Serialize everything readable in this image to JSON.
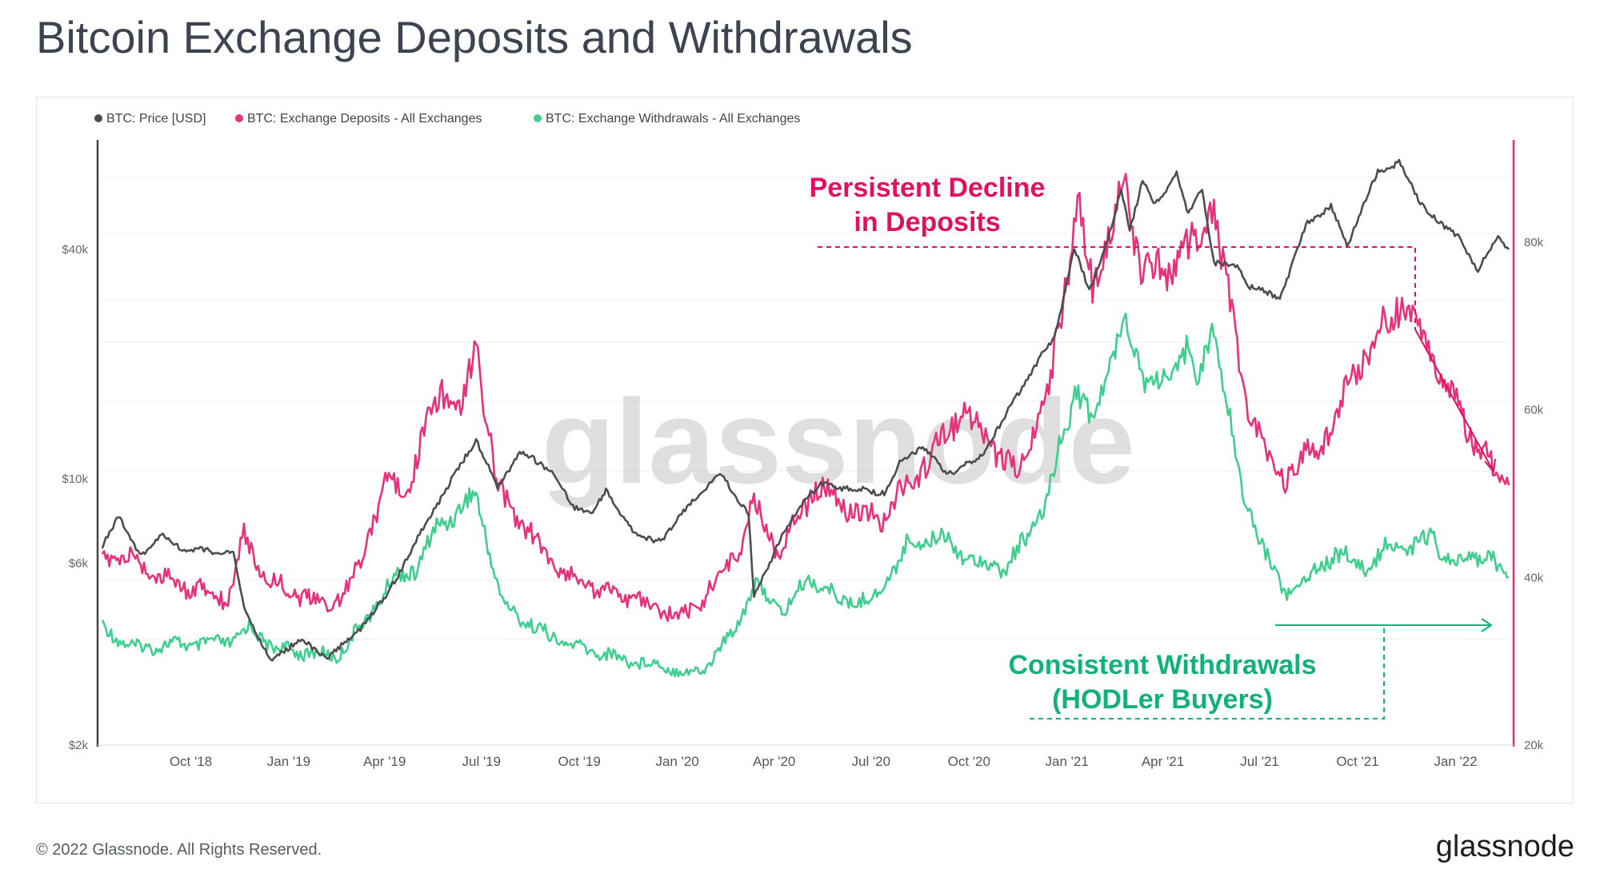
{
  "header": {
    "title": "Bitcoin Exchange Deposits and Withdrawals"
  },
  "footer": {
    "copyright": "© 2022 Glassnode. All Rights Reserved.",
    "brand": "glassnode"
  },
  "watermark": "glassnode",
  "colors": {
    "price": "#4d4d4d",
    "deposits": "#e8317a",
    "withdrawals": "#3ecf8e",
    "annot_red": "#e0115f",
    "annot_green": "#12b07a"
  },
  "chart_data": {
    "type": "line",
    "legend_position": "top-left",
    "legend": [
      {
        "key": "price",
        "label": "BTC: Price [USD]"
      },
      {
        "key": "deposits",
        "label": "BTC: Exchange Deposits - All Exchanges"
      },
      {
        "key": "withdrawals",
        "label": "BTC: Exchange Withdrawals - All Exchanges"
      }
    ],
    "x_range": [
      "2018-07-10",
      "2022-02-20"
    ],
    "x_ticks": [
      {
        "date": "2018-10-01",
        "label": "Oct '18"
      },
      {
        "date": "2019-01-01",
        "label": "Jan '19"
      },
      {
        "date": "2019-04-01",
        "label": "Apr '19"
      },
      {
        "date": "2019-07-01",
        "label": "Jul '19"
      },
      {
        "date": "2019-10-01",
        "label": "Oct '19"
      },
      {
        "date": "2020-01-01",
        "label": "Jan '20"
      },
      {
        "date": "2020-04-01",
        "label": "Apr '20"
      },
      {
        "date": "2020-07-01",
        "label": "Jul '20"
      },
      {
        "date": "2020-10-01",
        "label": "Oct '20"
      },
      {
        "date": "2021-01-01",
        "label": "Jan '21"
      },
      {
        "date": "2021-04-01",
        "label": "Apr '21"
      },
      {
        "date": "2021-07-01",
        "label": "Jul '21"
      },
      {
        "date": "2021-10-01",
        "label": "Oct '21"
      },
      {
        "date": "2022-01-01",
        "label": "Jan '22"
      }
    ],
    "y_left": {
      "scale": "log",
      "range": [
        2000,
        75000
      ],
      "ticks": [
        {
          "value": 2000,
          "label": "$2k"
        },
        {
          "value": 6000,
          "label": "$6k"
        },
        {
          "value": 10000,
          "label": "$10k"
        },
        {
          "value": 40000,
          "label": "$40k"
        }
      ]
    },
    "y_right": {
      "scale": "linear",
      "range": [
        20000,
        92000
      ],
      "ticks": [
        {
          "value": 20000,
          "label": "20k"
        },
        {
          "value": 40000,
          "label": "40k"
        },
        {
          "value": 60000,
          "label": "60k"
        },
        {
          "value": 80000,
          "label": "80k"
        }
      ]
    },
    "series": [
      {
        "key": "price",
        "name": "BTC: Price [USD]",
        "axis": "left",
        "points": [
          [
            "2018-07-10",
            6700
          ],
          [
            "2018-07-25",
            8000
          ],
          [
            "2018-08-14",
            6300
          ],
          [
            "2018-09-05",
            7100
          ],
          [
            "2018-09-25",
            6500
          ],
          [
            "2018-10-15",
            6500
          ],
          [
            "2018-11-10",
            6350
          ],
          [
            "2018-11-20",
            4600
          ],
          [
            "2018-12-15",
            3300
          ],
          [
            "2019-01-10",
            3800
          ],
          [
            "2019-02-05",
            3400
          ],
          [
            "2019-03-01",
            3800
          ],
          [
            "2019-04-02",
            4900
          ],
          [
            "2019-05-14",
            8000
          ],
          [
            "2019-06-26",
            12700
          ],
          [
            "2019-07-16",
            9500
          ],
          [
            "2019-08-06",
            11800
          ],
          [
            "2019-09-05",
            10500
          ],
          [
            "2019-09-25",
            8400
          ],
          [
            "2019-10-15",
            8200
          ],
          [
            "2019-10-26",
            9300
          ],
          [
            "2019-11-25",
            7000
          ],
          [
            "2019-12-18",
            6900
          ],
          [
            "2020-01-15",
            8800
          ],
          [
            "2020-02-12",
            10300
          ],
          [
            "2020-03-08",
            8000
          ],
          [
            "2020-03-13",
            4900
          ],
          [
            "2020-04-05",
            6800
          ],
          [
            "2020-04-30",
            8800
          ],
          [
            "2020-05-15",
            9700
          ],
          [
            "2020-06-15",
            9400
          ],
          [
            "2020-07-15",
            9200
          ],
          [
            "2020-07-28",
            11000
          ],
          [
            "2020-08-17",
            12200
          ],
          [
            "2020-09-10",
            10300
          ],
          [
            "2020-10-10",
            11300
          ],
          [
            "2020-10-28",
            13500
          ],
          [
            "2020-11-25",
            18500
          ],
          [
            "2020-12-20",
            23500
          ],
          [
            "2021-01-08",
            40000
          ],
          [
            "2021-01-22",
            31000
          ],
          [
            "2021-02-10",
            44000
          ],
          [
            "2021-02-21",
            57000
          ],
          [
            "2021-03-01",
            45000
          ],
          [
            "2021-03-13",
            61000
          ],
          [
            "2021-03-25",
            52000
          ],
          [
            "2021-04-14",
            63500
          ],
          [
            "2021-04-25",
            49000
          ],
          [
            "2021-05-08",
            58000
          ],
          [
            "2021-05-19",
            37000
          ],
          [
            "2021-06-10",
            36000
          ],
          [
            "2021-06-22",
            32000
          ],
          [
            "2021-07-20",
            29800
          ],
          [
            "2021-08-15",
            47000
          ],
          [
            "2021-09-06",
            52000
          ],
          [
            "2021-09-21",
            41000
          ],
          [
            "2021-10-20",
            64000
          ],
          [
            "2021-11-09",
            68000
          ],
          [
            "2021-11-27",
            54000
          ],
          [
            "2021-12-20",
            46000
          ],
          [
            "2022-01-05",
            43000
          ],
          [
            "2022-01-22",
            35000
          ],
          [
            "2022-02-10",
            44000
          ],
          [
            "2022-02-20",
            40000
          ]
        ]
      },
      {
        "key": "deposits",
        "name": "BTC: Exchange Deposits - All Exchanges",
        "axis": "right",
        "points": [
          [
            "2018-07-10",
            42500
          ],
          [
            "2018-08-10",
            42000
          ],
          [
            "2018-09-10",
            39500
          ],
          [
            "2018-10-10",
            38500
          ],
          [
            "2018-11-05",
            37500
          ],
          [
            "2018-11-20",
            45000
          ],
          [
            "2018-12-10",
            40000
          ],
          [
            "2019-01-10",
            38000
          ],
          [
            "2019-02-05",
            36500
          ],
          [
            "2019-03-01",
            39000
          ],
          [
            "2019-03-20",
            46000
          ],
          [
            "2019-04-05",
            53000
          ],
          [
            "2019-04-20",
            49000
          ],
          [
            "2019-05-10",
            58000
          ],
          [
            "2019-05-25",
            63000
          ],
          [
            "2019-06-10",
            59000
          ],
          [
            "2019-06-26",
            68000
          ],
          [
            "2019-07-15",
            51000
          ],
          [
            "2019-08-10",
            46000
          ],
          [
            "2019-09-10",
            41000
          ],
          [
            "2019-10-10",
            39000
          ],
          [
            "2019-11-10",
            38000
          ],
          [
            "2019-12-15",
            36000
          ],
          [
            "2020-01-10",
            35500
          ],
          [
            "2020-02-10",
            40000
          ],
          [
            "2020-03-01",
            44000
          ],
          [
            "2020-03-13",
            49000
          ],
          [
            "2020-04-05",
            43000
          ],
          [
            "2020-05-10",
            51000
          ],
          [
            "2020-06-10",
            48000
          ],
          [
            "2020-07-10",
            47000
          ],
          [
            "2020-08-10",
            52000
          ],
          [
            "2020-09-05",
            56000
          ],
          [
            "2020-09-25",
            60000
          ],
          [
            "2020-10-20",
            56000
          ],
          [
            "2020-11-15",
            52000
          ],
          [
            "2020-12-15",
            62000
          ],
          [
            "2021-01-11",
            85000
          ],
          [
            "2021-01-25",
            74000
          ],
          [
            "2021-02-22",
            87000
          ],
          [
            "2021-03-10",
            78000
          ],
          [
            "2021-04-05",
            76000
          ],
          [
            "2021-04-20",
            80000
          ],
          [
            "2021-05-05",
            79000
          ],
          [
            "2021-05-19",
            85000
          ],
          [
            "2021-06-15",
            62000
          ],
          [
            "2021-07-10",
            54000
          ],
          [
            "2021-07-25",
            52000
          ],
          [
            "2021-08-20",
            55000
          ],
          [
            "2021-09-10",
            59000
          ],
          [
            "2021-09-25",
            64000
          ],
          [
            "2021-10-20",
            69000
          ],
          [
            "2021-11-10",
            73000
          ],
          [
            "2021-11-25",
            70000
          ],
          [
            "2021-12-20",
            64000
          ],
          [
            "2022-01-15",
            57000
          ],
          [
            "2022-02-05",
            53000
          ],
          [
            "2022-02-20",
            51000
          ]
        ]
      },
      {
        "key": "withdrawals",
        "name": "BTC: Exchange Withdrawals - All Exchanges",
        "axis": "right",
        "points": [
          [
            "2018-07-10",
            34000
          ],
          [
            "2018-08-10",
            31500
          ],
          [
            "2018-09-10",
            32000
          ],
          [
            "2018-10-10",
            32000
          ],
          [
            "2018-11-10",
            32500
          ],
          [
            "2018-11-25",
            34000
          ],
          [
            "2018-12-20",
            31500
          ],
          [
            "2019-01-20",
            31000
          ],
          [
            "2019-02-15",
            30500
          ],
          [
            "2019-03-15",
            35000
          ],
          [
            "2019-04-10",
            40000
          ],
          [
            "2019-05-01",
            41000
          ],
          [
            "2019-05-20",
            46000
          ],
          [
            "2019-06-10",
            48000
          ],
          [
            "2019-06-26",
            50000
          ],
          [
            "2019-07-20",
            37000
          ],
          [
            "2019-08-20",
            34000
          ],
          [
            "2019-09-20",
            32000
          ],
          [
            "2019-10-20",
            31000
          ],
          [
            "2019-11-20",
            30000
          ],
          [
            "2019-12-20",
            29500
          ],
          [
            "2020-01-10",
            28500
          ],
          [
            "2020-01-25",
            29000
          ],
          [
            "2020-02-20",
            33000
          ],
          [
            "2020-03-13",
            39000
          ],
          [
            "2020-04-10",
            36000
          ],
          [
            "2020-05-05",
            40000
          ],
          [
            "2020-06-05",
            37000
          ],
          [
            "2020-07-05",
            37500
          ],
          [
            "2020-08-05",
            44000
          ],
          [
            "2020-09-05",
            45000
          ],
          [
            "2020-10-05",
            42000
          ],
          [
            "2020-11-05",
            41000
          ],
          [
            "2020-12-10",
            48000
          ],
          [
            "2021-01-10",
            63000
          ],
          [
            "2021-01-25",
            58000
          ],
          [
            "2021-02-22",
            71000
          ],
          [
            "2021-03-15",
            64000
          ],
          [
            "2021-04-10",
            63000
          ],
          [
            "2021-04-25",
            69000
          ],
          [
            "2021-05-05",
            63000
          ],
          [
            "2021-05-19",
            70000
          ],
          [
            "2021-06-15",
            50000
          ],
          [
            "2021-07-10",
            42000
          ],
          [
            "2021-07-25",
            38000
          ],
          [
            "2021-08-15",
            40000
          ],
          [
            "2021-09-10",
            43000
          ],
          [
            "2021-10-10",
            41000
          ],
          [
            "2021-11-01",
            44000
          ],
          [
            "2021-11-20",
            43500
          ],
          [
            "2021-12-10",
            45000
          ],
          [
            "2021-12-30",
            41000
          ],
          [
            "2022-01-25",
            43000
          ],
          [
            "2022-02-20",
            40000
          ]
        ]
      }
    ],
    "annotations": {
      "deposits_label": [
        "Persistent Decline",
        "in Deposits"
      ],
      "withdrawals_label": [
        "Consistent Withdrawals",
        "(HODLer Buyers)"
      ]
    }
  }
}
